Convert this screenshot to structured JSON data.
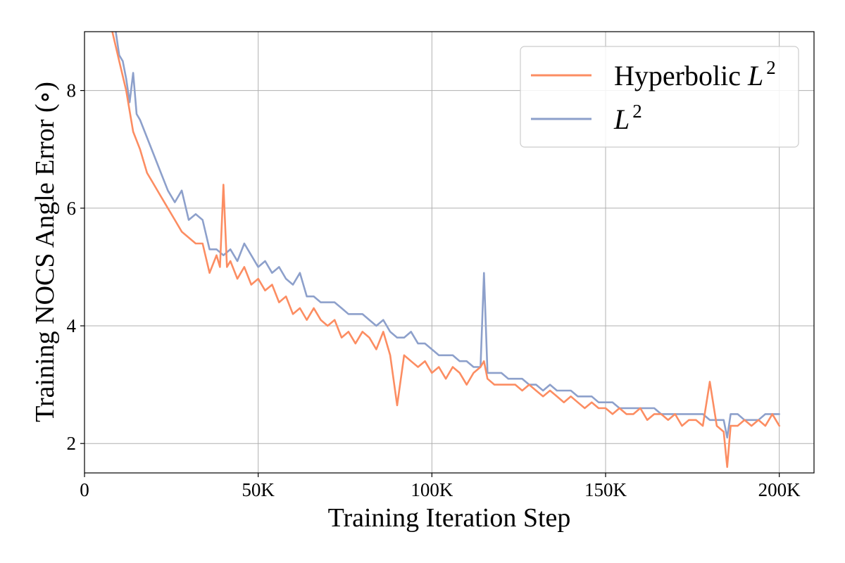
{
  "chart_data": {
    "type": "line",
    "title": "",
    "xlabel": "Training Iteration Step",
    "ylabel": "Training NOCS Angle Error (∘)",
    "xlim": [
      0,
      210000
    ],
    "ylim": [
      1.5,
      9.0
    ],
    "x_ticks": [
      0,
      50000,
      100000,
      150000,
      200000
    ],
    "x_tick_labels": [
      "0",
      "50K",
      "100K",
      "150K",
      "200K"
    ],
    "y_ticks": [
      2,
      4,
      6,
      8
    ],
    "y_tick_labels": [
      "2",
      "4",
      "6",
      "8"
    ],
    "grid": true,
    "legend_position": "top-right",
    "series": [
      {
        "name": "Hyperbolic L²",
        "legend_base": "Hyperbolic ",
        "legend_var": "L",
        "legend_sup": "2",
        "color": "#fc8d62",
        "x": [
          8000,
          10000,
          12000,
          14000,
          16000,
          18000,
          20000,
          22000,
          24000,
          26000,
          28000,
          30000,
          32000,
          34000,
          36000,
          38000,
          39000,
          40000,
          41000,
          42000,
          44000,
          46000,
          48000,
          50000,
          52000,
          54000,
          56000,
          58000,
          60000,
          62000,
          64000,
          66000,
          68000,
          70000,
          72000,
          74000,
          76000,
          78000,
          80000,
          82000,
          84000,
          86000,
          88000,
          90000,
          92000,
          94000,
          96000,
          98000,
          100000,
          102000,
          104000,
          106000,
          108000,
          110000,
          112000,
          114000,
          115000,
          116000,
          118000,
          120000,
          122000,
          124000,
          126000,
          128000,
          130000,
          132000,
          134000,
          136000,
          138000,
          140000,
          142000,
          144000,
          146000,
          148000,
          150000,
          152000,
          154000,
          156000,
          158000,
          160000,
          162000,
          164000,
          166000,
          168000,
          170000,
          172000,
          174000,
          176000,
          178000,
          180000,
          182000,
          184000,
          185000,
          186000,
          188000,
          190000,
          192000,
          194000,
          196000,
          198000,
          200000
        ],
        "y": [
          9.0,
          8.5,
          8.0,
          7.3,
          7.0,
          6.6,
          6.4,
          6.2,
          6.0,
          5.8,
          5.6,
          5.5,
          5.4,
          5.4,
          4.9,
          5.2,
          5.0,
          6.4,
          5.0,
          5.1,
          4.8,
          5.0,
          4.7,
          4.8,
          4.6,
          4.7,
          4.4,
          4.5,
          4.2,
          4.3,
          4.1,
          4.3,
          4.1,
          4.0,
          4.1,
          3.8,
          3.9,
          3.7,
          3.9,
          3.8,
          3.6,
          3.9,
          3.5,
          2.65,
          3.5,
          3.4,
          3.3,
          3.4,
          3.2,
          3.3,
          3.1,
          3.3,
          3.2,
          3.0,
          3.2,
          3.3,
          3.4,
          3.1,
          3.0,
          3.0,
          3.0,
          3.0,
          2.9,
          3.0,
          2.9,
          2.8,
          2.9,
          2.8,
          2.7,
          2.8,
          2.7,
          2.6,
          2.7,
          2.6,
          2.6,
          2.5,
          2.6,
          2.5,
          2.5,
          2.6,
          2.4,
          2.5,
          2.5,
          2.4,
          2.5,
          2.3,
          2.4,
          2.4,
          2.3,
          3.05,
          2.3,
          2.2,
          1.6,
          2.3,
          2.3,
          2.4,
          2.3,
          2.4,
          2.3,
          2.5,
          2.3
        ]
      },
      {
        "name": "L²",
        "legend_base": "",
        "legend_var": "L",
        "legend_sup": "2",
        "color": "#8da0cb",
        "x": [
          9000,
          10000,
          11000,
          12000,
          13000,
          14000,
          15000,
          16000,
          18000,
          20000,
          22000,
          24000,
          26000,
          28000,
          30000,
          32000,
          34000,
          36000,
          38000,
          40000,
          42000,
          44000,
          46000,
          48000,
          50000,
          52000,
          54000,
          56000,
          58000,
          60000,
          62000,
          64000,
          66000,
          68000,
          70000,
          72000,
          74000,
          76000,
          78000,
          80000,
          82000,
          84000,
          86000,
          88000,
          90000,
          92000,
          94000,
          96000,
          98000,
          100000,
          102000,
          104000,
          106000,
          108000,
          110000,
          112000,
          114000,
          115000,
          116000,
          118000,
          120000,
          122000,
          124000,
          126000,
          128000,
          130000,
          132000,
          134000,
          136000,
          138000,
          140000,
          142000,
          144000,
          146000,
          148000,
          150000,
          152000,
          154000,
          156000,
          158000,
          160000,
          162000,
          164000,
          166000,
          168000,
          170000,
          172000,
          174000,
          176000,
          178000,
          180000,
          182000,
          184000,
          185000,
          186000,
          188000,
          190000,
          192000,
          194000,
          196000,
          198000,
          200000
        ],
        "y": [
          9.0,
          8.6,
          8.5,
          8.2,
          7.8,
          8.3,
          7.6,
          7.5,
          7.2,
          6.9,
          6.6,
          6.3,
          6.1,
          6.3,
          5.8,
          5.9,
          5.8,
          5.3,
          5.3,
          5.2,
          5.3,
          5.1,
          5.4,
          5.2,
          5.0,
          5.1,
          4.9,
          5.0,
          4.8,
          4.7,
          4.9,
          4.5,
          4.5,
          4.4,
          4.4,
          4.4,
          4.3,
          4.2,
          4.2,
          4.2,
          4.1,
          4.0,
          4.1,
          3.9,
          3.8,
          3.8,
          3.9,
          3.7,
          3.7,
          3.6,
          3.5,
          3.5,
          3.5,
          3.4,
          3.4,
          3.3,
          3.3,
          4.9,
          3.2,
          3.2,
          3.2,
          3.1,
          3.1,
          3.1,
          3.0,
          3.0,
          2.9,
          3.0,
          2.9,
          2.9,
          2.9,
          2.8,
          2.8,
          2.8,
          2.7,
          2.7,
          2.7,
          2.6,
          2.6,
          2.6,
          2.6,
          2.6,
          2.6,
          2.5,
          2.5,
          2.5,
          2.5,
          2.5,
          2.5,
          2.5,
          2.4,
          2.4,
          2.4,
          2.1,
          2.5,
          2.5,
          2.4,
          2.4,
          2.4,
          2.5,
          2.5,
          2.5
        ]
      }
    ]
  }
}
